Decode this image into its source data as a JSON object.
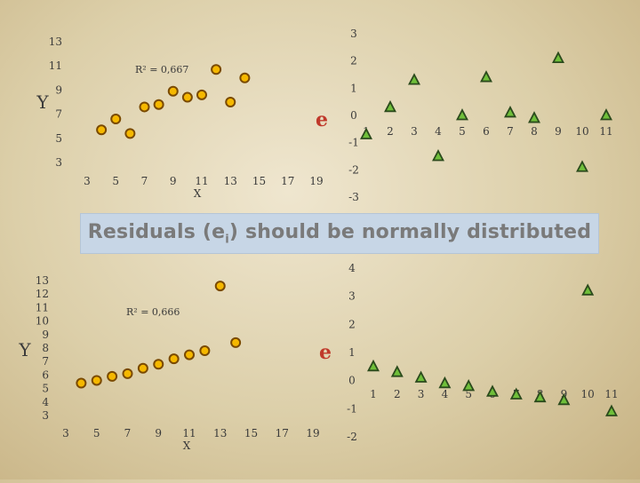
{
  "banner": {
    "text_before": "Residuals (e",
    "sub": "i",
    "text_after": ") should be normally distributed"
  },
  "colors": {
    "point_fill": "#f5b800",
    "point_stroke": "#7a4a00",
    "tri_fill": "#6fbf3a",
    "tri_stroke": "#2b4a1c"
  },
  "chart_data": [
    {
      "type": "scatter",
      "xlabel": "X",
      "ylabel": "Y",
      "annotation": "R² = 0,667",
      "xticks": [
        "3",
        "5",
        "7",
        "9",
        "11",
        "13",
        "15",
        "17",
        "19"
      ],
      "yticks": [
        "3",
        "5",
        "7",
        "9",
        "11",
        "13"
      ],
      "xlim": [
        3,
        19
      ],
      "ylim": [
        3,
        13
      ],
      "points": [
        [
          4,
          5.7
        ],
        [
          5,
          6.6
        ],
        [
          6,
          5.4
        ],
        [
          7,
          7.6
        ],
        [
          8,
          7.8
        ],
        [
          9,
          8.9
        ],
        [
          10,
          8.4
        ],
        [
          11,
          8.6
        ],
        [
          12,
          10.7
        ],
        [
          13,
          8
        ],
        [
          14,
          10
        ]
      ]
    },
    {
      "type": "scatter",
      "ylabel": "e",
      "xticks": [
        "1",
        "2",
        "3",
        "4",
        "5",
        "6",
        "7",
        "8",
        "9",
        "10",
        "11"
      ],
      "yticks": [
        "3",
        "2",
        "1",
        "0",
        "-1",
        "-2",
        "-3"
      ],
      "xlim": [
        1,
        11
      ],
      "ylim": [
        -3,
        3
      ],
      "points": [
        [
          1,
          -0.7
        ],
        [
          2,
          0.3
        ],
        [
          3,
          1.3
        ],
        [
          4,
          -1.5
        ],
        [
          5,
          0
        ],
        [
          6,
          1.4
        ],
        [
          7,
          0.1
        ],
        [
          8,
          -0.1
        ],
        [
          9,
          2.1
        ],
        [
          10,
          -1.9
        ],
        [
          11,
          0
        ]
      ]
    },
    {
      "type": "scatter",
      "xlabel": "X",
      "ylabel": "Y",
      "annotation": "R² = 0,666",
      "xticks": [
        "3",
        "5",
        "7",
        "9",
        "11",
        "13",
        "15",
        "17",
        "19"
      ],
      "yticks": [
        "3",
        "4",
        "5",
        "6",
        "7",
        "8",
        "9",
        "10",
        "11",
        "12",
        "13"
      ],
      "xlim": [
        3,
        19
      ],
      "ylim": [
        3,
        13
      ],
      "points": [
        [
          4,
          5.4
        ],
        [
          5,
          5.6
        ],
        [
          6,
          5.9
        ],
        [
          7,
          6.1
        ],
        [
          8,
          6.5
        ],
        [
          9,
          6.8
        ],
        [
          10,
          7.2
        ],
        [
          11,
          7.5
        ],
        [
          12,
          7.8
        ],
        [
          13,
          12.6
        ],
        [
          14,
          8.4
        ]
      ]
    },
    {
      "type": "scatter",
      "ylabel": "e",
      "xticks": [
        "1",
        "2",
        "3",
        "4",
        "5",
        "6",
        "7",
        "8",
        "9",
        "10",
        "11"
      ],
      "yticks": [
        "4",
        "3",
        "2",
        "1",
        "0",
        "-1",
        "-2"
      ],
      "xlim": [
        1,
        11
      ],
      "ylim": [
        -2,
        4
      ],
      "points": [
        [
          1,
          0.5
        ],
        [
          2,
          0.3
        ],
        [
          3,
          0.1
        ],
        [
          4,
          -0.1
        ],
        [
          5,
          -0.2
        ],
        [
          6,
          -0.4
        ],
        [
          7,
          -0.5
        ],
        [
          8,
          -0.6
        ],
        [
          9,
          -0.7
        ],
        [
          10,
          3.2
        ],
        [
          11,
          -1.1
        ]
      ]
    }
  ]
}
